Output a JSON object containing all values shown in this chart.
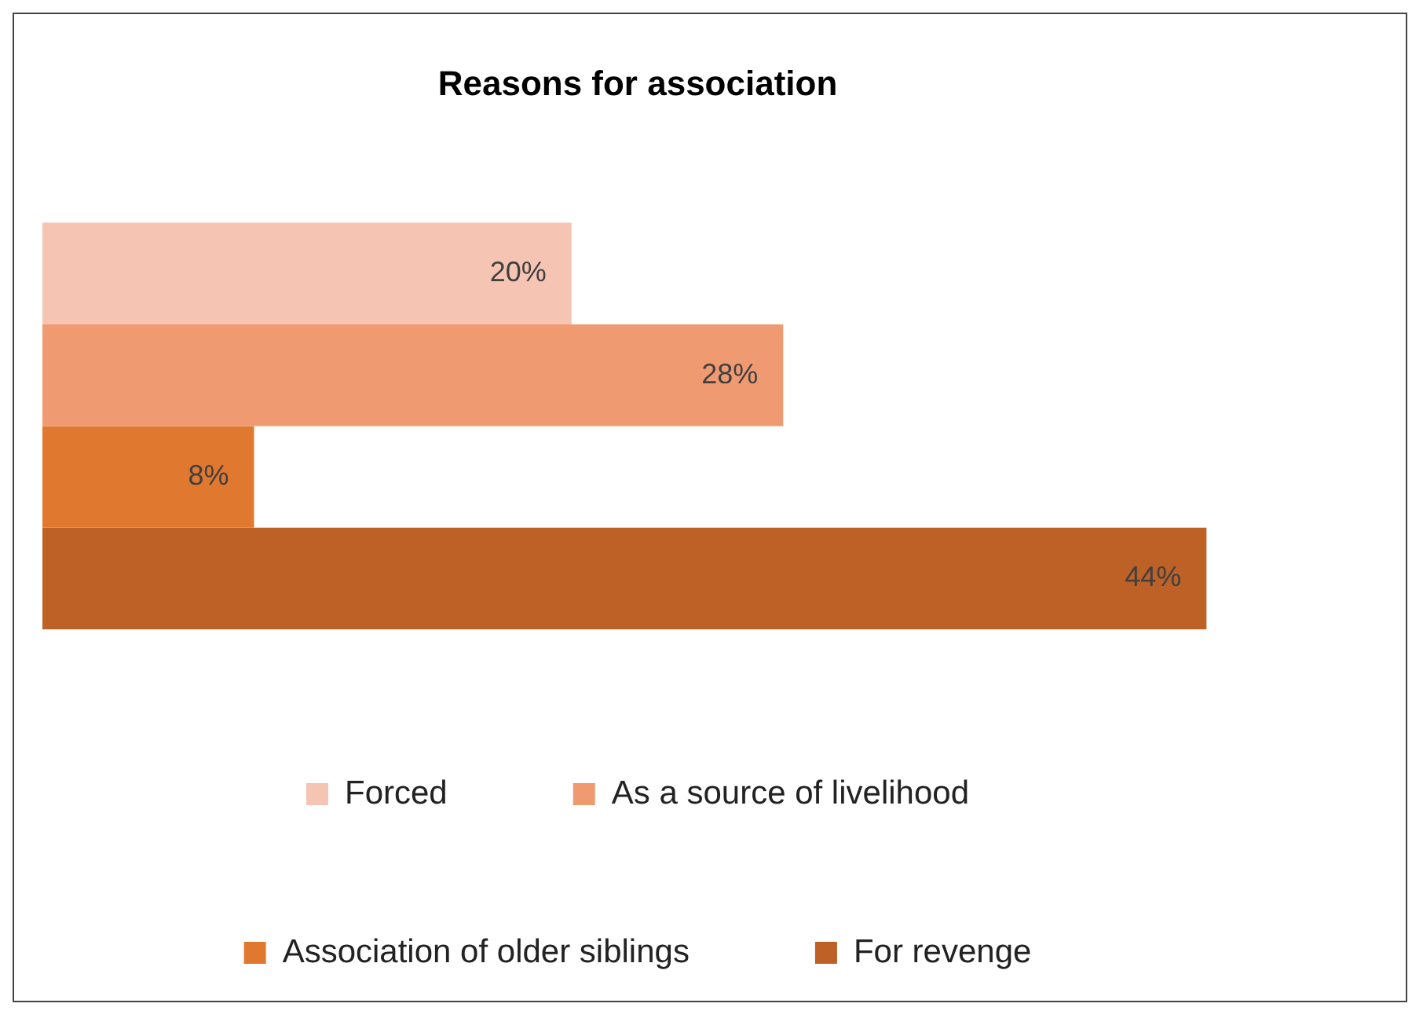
{
  "chart_data": {
    "type": "bar",
    "orientation": "horizontal",
    "title": "Reasons for association",
    "categories": [
      null
    ],
    "series": [
      {
        "name": "Forced",
        "color": "#f5c4b2",
        "values": [
          20
        ],
        "value_labels": [
          "20%"
        ]
      },
      {
        "name": "As a source of livelihood",
        "color": "#f09a72",
        "values": [
          28
        ],
        "value_labels": [
          "28%"
        ]
      },
      {
        "name": "Association of older siblings",
        "color": "#e07830",
        "values": [
          8
        ],
        "value_labels": [
          "8%"
        ]
      },
      {
        "name": "For revenge",
        "color": "#bd6126",
        "values": [
          44
        ],
        "value_labels": [
          "44%"
        ]
      }
    ],
    "legend": "bottom",
    "grid": false,
    "tick_labels": false
  }
}
